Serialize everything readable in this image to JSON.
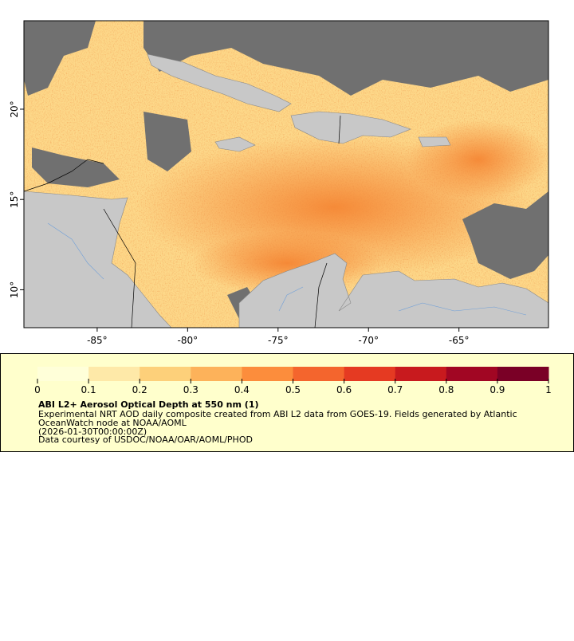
{
  "map": {
    "xlim": [
      -89.05,
      -60.05
    ],
    "ylim": [
      7.9,
      24.9
    ],
    "xticks": [
      {
        "value": -85,
        "label": "-85°"
      },
      {
        "value": -80,
        "label": "-80°"
      },
      {
        "value": -75,
        "label": "-75°"
      },
      {
        "value": -70,
        "label": "-70°"
      },
      {
        "value": -65,
        "label": "-65°"
      }
    ],
    "yticks": [
      {
        "value": 10,
        "label": "10°"
      },
      {
        "value": 15,
        "label": "15°"
      },
      {
        "value": 20,
        "label": "20°"
      }
    ]
  },
  "colorbar": {
    "lim": [
      0,
      1
    ],
    "ticks": [
      0,
      0.1,
      0.2,
      0.3,
      0.4,
      0.5,
      0.6,
      0.7,
      0.8,
      0.9,
      1
    ],
    "colors": [
      "#ffffd9",
      "#fee9a8",
      "#fdd07a",
      "#fdb25a",
      "#fc8d3c",
      "#f4652d",
      "#e53a22",
      "#c81a1e",
      "#a10623",
      "#7a0026"
    ]
  },
  "legend": {
    "title": "ABI L2+ Aerosol Optical Depth at 550 nm (1)",
    "lines": [
      "Experimental NRT AOD daily composite created from ABI L2 data from GOES-19. Fields generated by Atlantic",
      "OceanWatch node at NOAA/AOML",
      "(2026-01-30T00:00:00Z)",
      "Data courtesy of USDOC/NOAA/OAR/AOML/PHOD"
    ]
  }
}
